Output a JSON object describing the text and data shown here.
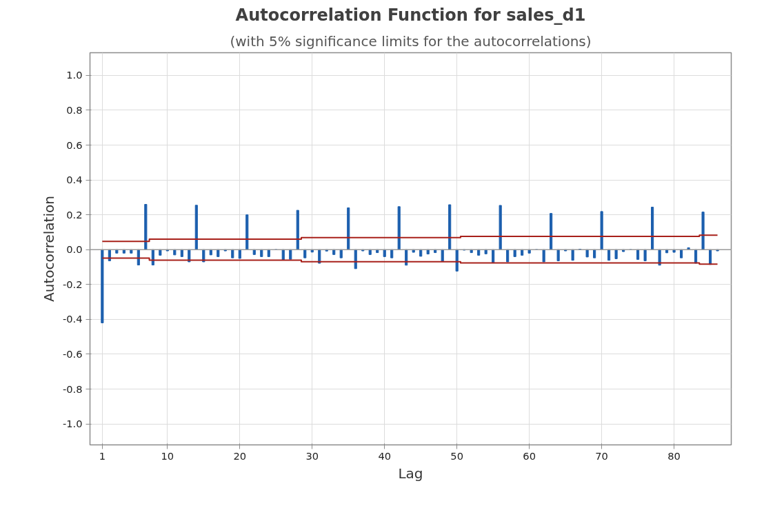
{
  "chart_data": {
    "type": "bar",
    "title": "Autocorrelation Function for sales_d1",
    "subtitle": "(with 5% significance limits for the autocorrelations)",
    "xlabel": "Lag",
    "ylabel": "Autocorrelation",
    "x": [
      1,
      2,
      3,
      4,
      5,
      6,
      7,
      8,
      9,
      10,
      11,
      12,
      13,
      14,
      15,
      16,
      17,
      18,
      19,
      20,
      21,
      22,
      23,
      24,
      25,
      26,
      27,
      28,
      29,
      30,
      31,
      32,
      33,
      34,
      35,
      36,
      37,
      38,
      39,
      40,
      41,
      42,
      43,
      44,
      45,
      46,
      47,
      48,
      49,
      50,
      51,
      52,
      53,
      54,
      55,
      56,
      57,
      58,
      59,
      60,
      61,
      62,
      63,
      64,
      65,
      66,
      67,
      68,
      69,
      70,
      71,
      72,
      73,
      74,
      75,
      76,
      77,
      78,
      79,
      80,
      81,
      82,
      83,
      84,
      85,
      86
    ],
    "series": [
      {
        "color": "#1c5fae",
        "values": [
          -0.42,
          -0.064,
          -0.02,
          -0.02,
          -0.02,
          -0.088,
          0.26,
          -0.088,
          -0.032,
          -0.007,
          -0.03,
          -0.04,
          -0.07,
          0.255,
          -0.07,
          -0.03,
          -0.04,
          -0.007,
          -0.047,
          -0.05,
          0.2,
          -0.028,
          -0.04,
          -0.04,
          0,
          -0.06,
          -0.055,
          0.226,
          -0.047,
          -0.014,
          -0.078,
          -0.008,
          -0.028,
          -0.047,
          0.24,
          -0.109,
          -0.007,
          -0.028,
          -0.017,
          -0.04,
          -0.047,
          0.247,
          -0.089,
          -0.015,
          -0.038,
          -0.025,
          -0.017,
          -0.066,
          0.258,
          -0.123,
          -0.003,
          -0.017,
          -0.032,
          -0.024,
          -0.075,
          0.254,
          -0.07,
          -0.04,
          -0.032,
          -0.02,
          0,
          -0.07,
          0.208,
          -0.064,
          -0.007,
          -0.061,
          0.003,
          -0.042,
          -0.047,
          0.219,
          -0.061,
          -0.052,
          -0.011,
          0,
          -0.056,
          -0.064,
          0.244,
          -0.089,
          -0.018,
          -0.015,
          -0.047,
          0.011,
          -0.078,
          0.216,
          -0.085,
          -0.007
        ]
      },
      {
        "type": "step",
        "color": "#a8201a",
        "values": [
          0.048,
          0.048,
          0.048,
          0.048,
          0.048,
          0.048,
          0.048,
          0.06,
          0.06,
          0.06,
          0.06,
          0.06,
          0.06,
          0.06,
          0.06,
          0.06,
          0.06,
          0.06,
          0.06,
          0.06,
          0.06,
          0.06,
          0.06,
          0.06,
          0.06,
          0.06,
          0.06,
          0.06,
          0.069,
          0.069,
          0.069,
          0.069,
          0.069,
          0.069,
          0.069,
          0.069,
          0.069,
          0.069,
          0.069,
          0.069,
          0.069,
          0.069,
          0.069,
          0.069,
          0.069,
          0.069,
          0.069,
          0.069,
          0.069,
          0.069,
          0.076,
          0.076,
          0.076,
          0.076,
          0.076,
          0.076,
          0.076,
          0.076,
          0.076,
          0.076,
          0.076,
          0.076,
          0.076,
          0.076,
          0.076,
          0.076,
          0.076,
          0.076,
          0.076,
          0.076,
          0.076,
          0.076,
          0.076,
          0.076,
          0.076,
          0.076,
          0.076,
          0.076,
          0.076,
          0.076,
          0.076,
          0.076,
          0.076,
          0.083,
          0.083,
          0.083
        ]
      },
      {
        "type": "step",
        "color": "#a8201a",
        "values": [
          -0.048,
          -0.048,
          -0.048,
          -0.048,
          -0.048,
          -0.048,
          -0.048,
          -0.06,
          -0.06,
          -0.06,
          -0.06,
          -0.06,
          -0.06,
          -0.06,
          -0.06,
          -0.06,
          -0.06,
          -0.06,
          -0.06,
          -0.06,
          -0.06,
          -0.06,
          -0.06,
          -0.06,
          -0.06,
          -0.06,
          -0.06,
          -0.06,
          -0.069,
          -0.069,
          -0.069,
          -0.069,
          -0.069,
          -0.069,
          -0.069,
          -0.069,
          -0.069,
          -0.069,
          -0.069,
          -0.069,
          -0.069,
          -0.069,
          -0.069,
          -0.069,
          -0.069,
          -0.069,
          -0.069,
          -0.069,
          -0.069,
          -0.069,
          -0.076,
          -0.076,
          -0.076,
          -0.076,
          -0.076,
          -0.076,
          -0.076,
          -0.076,
          -0.076,
          -0.076,
          -0.076,
          -0.076,
          -0.076,
          -0.076,
          -0.076,
          -0.076,
          -0.076,
          -0.076,
          -0.076,
          -0.076,
          -0.076,
          -0.076,
          -0.076,
          -0.076,
          -0.076,
          -0.076,
          -0.076,
          -0.076,
          -0.076,
          -0.076,
          -0.076,
          -0.076,
          -0.076,
          -0.083,
          -0.083,
          -0.083
        ]
      }
    ],
    "xlim": [
      -0.7,
      87.9
    ],
    "xticks": [
      1,
      10,
      20,
      30,
      40,
      50,
      60,
      70,
      80
    ],
    "ylim": [
      -1.12,
      1.13
    ],
    "yticks": [
      {
        "value": -1.0,
        "label": "-1.0"
      },
      -0.8,
      -0.6,
      -0.4,
      -0.2,
      {
        "value": 0,
        "label": "0.0"
      },
      0.2,
      0.4,
      0.6,
      0.8,
      {
        "value": 1.0,
        "label": "1.0"
      }
    ],
    "ref_lines": [
      {
        "axis": "y",
        "value": 0,
        "color": "#9a9a9a"
      }
    ],
    "grid": true
  }
}
